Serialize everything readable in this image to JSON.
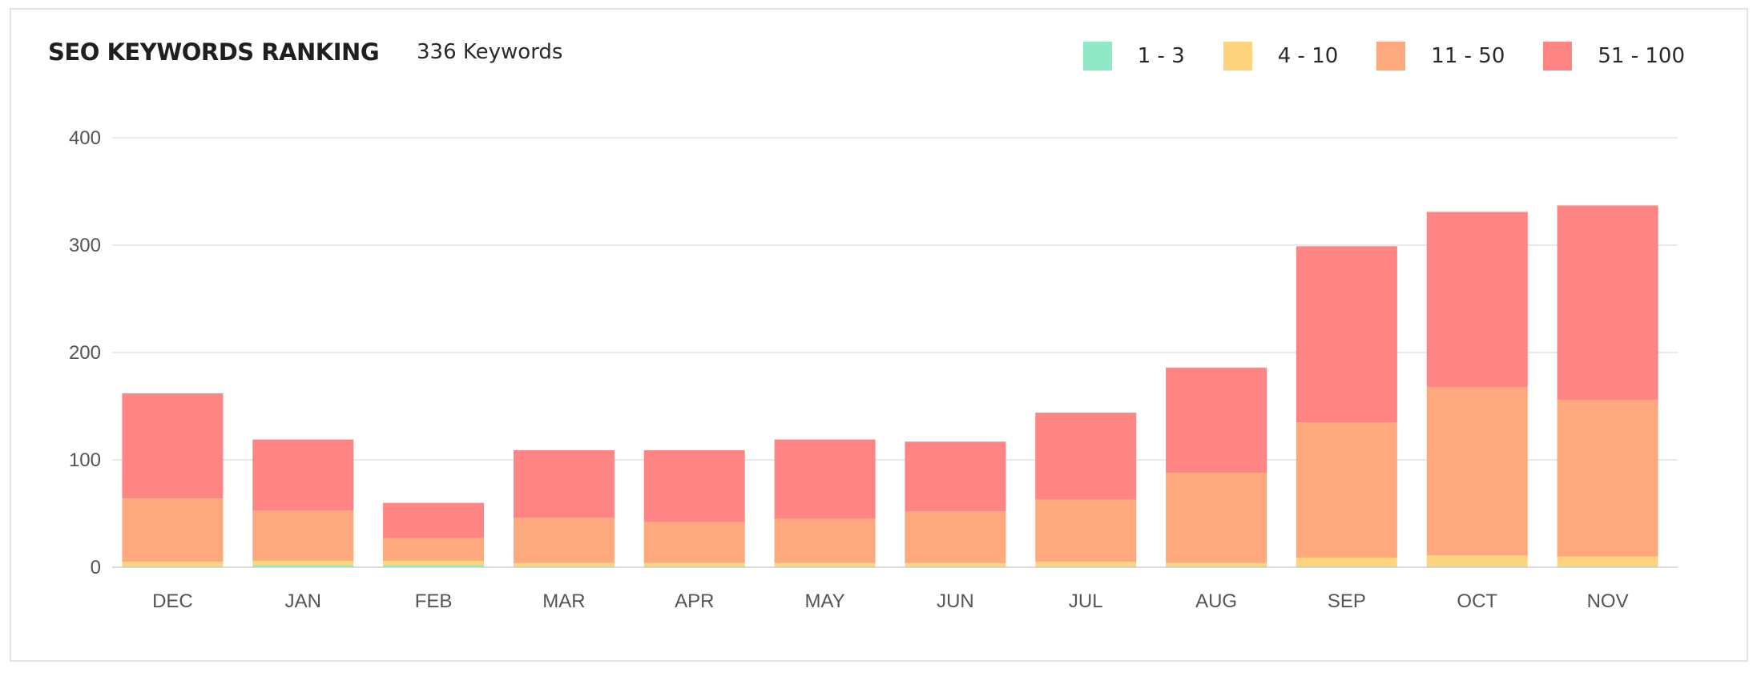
{
  "header": {
    "title": "SEO KEYWORDS RANKING",
    "subtitle": "336 Keywords"
  },
  "chart_data": {
    "type": "bar",
    "stacked": true,
    "categories": [
      "DEC",
      "JAN",
      "FEB",
      "MAR",
      "APR",
      "MAY",
      "JUN",
      "JUL",
      "AUG",
      "SEP",
      "OCT",
      "NOV"
    ],
    "series": [
      {
        "name": "1 - 3",
        "color": "#8fe8c6",
        "values": [
          1,
          2,
          2,
          1,
          1,
          1,
          1,
          1,
          1,
          1,
          1,
          1
        ]
      },
      {
        "name": "4 - 10",
        "color": "#ffd47e",
        "values": [
          4,
          4,
          4,
          3,
          3,
          3,
          3,
          4,
          3,
          8,
          10,
          9
        ]
      },
      {
        "name": "11 - 50",
        "color": "#fea97d",
        "values": [
          59,
          47,
          21,
          42,
          38,
          41,
          48,
          58,
          84,
          126,
          157,
          146
        ]
      },
      {
        "name": "51 - 100",
        "color": "#ff8585",
        "values": [
          98,
          66,
          33,
          63,
          67,
          74,
          65,
          81,
          98,
          164,
          163,
          181
        ]
      }
    ],
    "ylim": [
      0,
      400
    ],
    "yticks": [
      0,
      100,
      200,
      300,
      400
    ],
    "grid": true,
    "legend_position": "top-right"
  }
}
